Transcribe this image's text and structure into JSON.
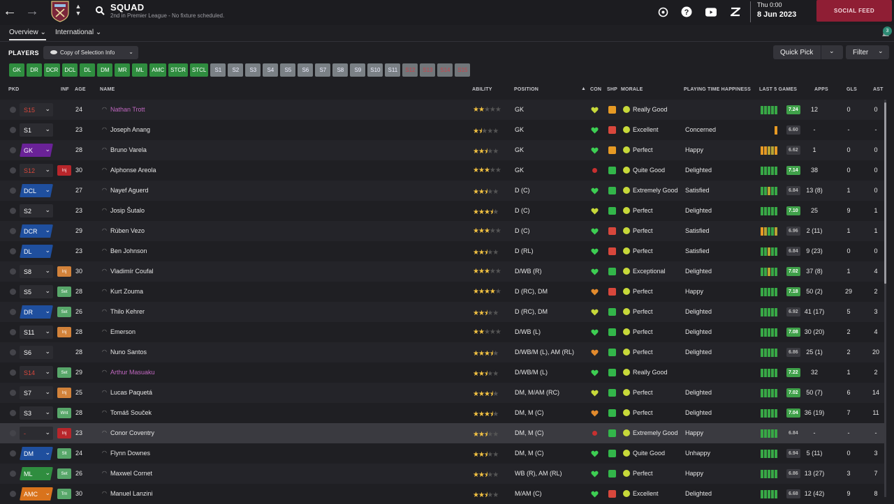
{
  "topbar": {
    "title": "SQUAD",
    "subtitle": "2nd in Premier League - No fixture scheduled.",
    "date_day": "Thu 0:00",
    "date_full": "8 Jun 2023",
    "social_feed": "SOCIAL FEED"
  },
  "tabs": [
    {
      "label": "Overview",
      "active": true
    },
    {
      "label": "International",
      "active": false
    }
  ],
  "notifications": {
    "count": "3"
  },
  "players_section": {
    "label": "PLAYERS",
    "copy_button": "Copy of Selection Info",
    "quick_pick": "Quick Pick",
    "filter": "Filter"
  },
  "chips": [
    {
      "label": "GK",
      "kind": "pos"
    },
    {
      "label": "DR",
      "kind": "pos"
    },
    {
      "label": "DCR",
      "kind": "pos"
    },
    {
      "label": "DCL",
      "kind": "pos"
    },
    {
      "label": "DL",
      "kind": "pos"
    },
    {
      "label": "DM",
      "kind": "pos"
    },
    {
      "label": "MR",
      "kind": "pos"
    },
    {
      "label": "ML",
      "kind": "pos"
    },
    {
      "label": "AMC",
      "kind": "pos"
    },
    {
      "label": "STCR",
      "kind": "pos"
    },
    {
      "label": "STCL",
      "kind": "pos"
    },
    {
      "label": "S1",
      "kind": "sel"
    },
    {
      "label": "S2",
      "kind": "sel"
    },
    {
      "label": "S3",
      "kind": "sel"
    },
    {
      "label": "S4",
      "kind": "sel"
    },
    {
      "label": "S5",
      "kind": "sel"
    },
    {
      "label": "S6",
      "kind": "sel"
    },
    {
      "label": "S7",
      "kind": "sel"
    },
    {
      "label": "S8",
      "kind": "sel"
    },
    {
      "label": "S9",
      "kind": "sel"
    },
    {
      "label": "S10",
      "kind": "sel"
    },
    {
      "label": "S11",
      "kind": "sel"
    },
    {
      "label": "S12",
      "kind": "empty"
    },
    {
      "label": "S13",
      "kind": "empty"
    },
    {
      "label": "S14",
      "kind": "empty"
    },
    {
      "label": "S15",
      "kind": "empty"
    }
  ],
  "columns": {
    "pkd": "PKD",
    "inf": "INF",
    "age": "AGE",
    "name": "NAME",
    "ability": "ABILITY",
    "position": "POSITION",
    "con": "CON",
    "shp": "SHP",
    "morale": "MORALE",
    "pth": "PLAYING TIME HAPPINESS",
    "last5": "LAST 5 GAMES",
    "apps": "APPS",
    "gls": "GLS",
    "ast": "AST"
  },
  "colors": {
    "pos_green": "#2f8d3f",
    "pos_blue": "#1f4f9e",
    "pos_purple": "#6a2298",
    "pos_orange": "#d9731c",
    "inj": "#b8262b",
    "set": "#58a76a",
    "wnt": "#55a86a",
    "loan_pink": "#c067c0"
  },
  "players": [
    {
      "pkd": "S15",
      "pkd_style": "red",
      "inf": "",
      "age": "24",
      "name": "Nathan Trott",
      "name_style": "pink",
      "stars": 2,
      "half": false,
      "position": "GK",
      "con": "yellow",
      "shp": "orange",
      "morale": "green",
      "morale_text": "Really Good",
      "pth": "",
      "form": [
        3,
        3,
        3,
        3,
        3
      ],
      "rating": "7.24",
      "rating_style": "green",
      "apps": "12",
      "gls": "0",
      "ast": "0"
    },
    {
      "pkd": "S1",
      "pkd_style": "plain",
      "inf": "",
      "age": "23",
      "name": "Joseph Anang",
      "stars": 1,
      "half": true,
      "position": "GK",
      "con": "green",
      "shp": "red",
      "morale": "green",
      "morale_text": "Excellent",
      "pth": "Concerned",
      "form": [
        0,
        0,
        0,
        0,
        1
      ],
      "rating": "6.60",
      "rating_style": "dark",
      "apps": "-",
      "gls": "-",
      "ast": "-"
    },
    {
      "pkd": "GK",
      "pkd_style": "purple",
      "inf": "",
      "age": "28",
      "name": "Bruno Varela",
      "stars": 2,
      "half": true,
      "position": "GK",
      "con": "green",
      "shp": "orangeup",
      "morale": "green",
      "morale_text": "Perfect",
      "pth": "Happy",
      "form": [
        1,
        1,
        2,
        2,
        1
      ],
      "rating": "6.62",
      "rating_style": "dark",
      "apps": "1",
      "gls": "0",
      "ast": "0"
    },
    {
      "pkd": "S12",
      "pkd_style": "red",
      "inf": "Inj",
      "inf_style": "inj",
      "age": "30",
      "name": "Alphonse Areola",
      "stars": 3,
      "half": false,
      "position": "GK",
      "con": "red",
      "shp": "green",
      "morale": "green",
      "morale_text": "Quite Good",
      "pth": "Delighted",
      "form": [
        3,
        3,
        3,
        3,
        3
      ],
      "rating": "7.14",
      "rating_style": "green",
      "apps": "38",
      "gls": "0",
      "ast": "0"
    },
    {
      "pkd": "DCL",
      "pkd_style": "blue",
      "inf": "",
      "age": "27",
      "name": "Nayef Aguerd",
      "stars": 2,
      "half": true,
      "position": "D (C)",
      "con": "green",
      "shp": "green",
      "morale": "green",
      "morale_text": "Extremely Good",
      "pth": "Satisfied",
      "form": [
        3,
        3,
        2,
        3,
        3
      ],
      "rating": "6.84",
      "rating_style": "dark",
      "apps": "13 (8)",
      "gls": "1",
      "ast": "0"
    },
    {
      "pkd": "S2",
      "pkd_style": "plain",
      "inf": "",
      "age": "23",
      "name": "Josip Šutalo",
      "stars": 3,
      "half": true,
      "position": "D (C)",
      "con": "yellow",
      "shp": "green",
      "morale": "green",
      "morale_text": "Perfect",
      "pth": "Delighted",
      "form": [
        3,
        3,
        3,
        3,
        3
      ],
      "rating": "7.10",
      "rating_style": "green",
      "apps": "25",
      "gls": "9",
      "ast": "1"
    },
    {
      "pkd": "DCR",
      "pkd_style": "blue",
      "inf": "",
      "age": "29",
      "name": "Rúben Vezo",
      "stars": 3,
      "half": false,
      "position": "D (C)",
      "con": "green",
      "shp": "red",
      "morale": "green",
      "morale_text": "Perfect",
      "pth": "Satisfied",
      "form": [
        1,
        2,
        3,
        3,
        2
      ],
      "rating": "6.96",
      "rating_style": "dark",
      "apps": "2 (11)",
      "gls": "1",
      "ast": "1"
    },
    {
      "pkd": "DL",
      "pkd_style": "blue",
      "inf": "",
      "age": "23",
      "name": "Ben Johnson",
      "stars": 2,
      "half": true,
      "position": "D (RL)",
      "con": "green",
      "shp": "red",
      "morale": "green",
      "morale_text": "Perfect",
      "pth": "Satisfied",
      "form": [
        3,
        3,
        2,
        3,
        3
      ],
      "rating": "6.84",
      "rating_style": "dark",
      "apps": "9 (23)",
      "gls": "0",
      "ast": "0"
    },
    {
      "pkd": "S8",
      "pkd_style": "plain",
      "inf": "Inj",
      "inf_style": "injo",
      "age": "30",
      "name": "Vladimír Coufal",
      "stars": 3,
      "half": false,
      "position": "D/WB (R)",
      "con": "green",
      "shp": "green",
      "morale": "green",
      "morale_text": "Exceptional",
      "pth": "Delighted",
      "form": [
        3,
        3,
        2,
        3,
        3
      ],
      "rating": "7.02",
      "rating_style": "green",
      "apps": "37 (8)",
      "gls": "1",
      "ast": "4"
    },
    {
      "pkd": "S5",
      "pkd_style": "plain",
      "inf": "Set",
      "inf_style": "set",
      "age": "28",
      "name": "Kurt Zouma",
      "stars": 4,
      "half": false,
      "position": "D (RC), DM",
      "con": "orange",
      "shp": "red",
      "morale": "green",
      "morale_text": "Perfect",
      "pth": "Happy",
      "form": [
        3,
        3,
        3,
        3,
        3
      ],
      "rating": "7.18",
      "rating_style": "green",
      "apps": "50 (2)",
      "gls": "29",
      "ast": "2"
    },
    {
      "pkd": "DR",
      "pkd_style": "blue",
      "inf": "Set",
      "inf_style": "set",
      "age": "26",
      "name": "Thilo Kehrer",
      "stars": 2,
      "half": true,
      "position": "D (RC), DM",
      "con": "yellow",
      "shp": "green",
      "morale": "green",
      "morale_text": "Perfect",
      "pth": "Delighted",
      "form": [
        3,
        3,
        3,
        3,
        3
      ],
      "rating": "6.92",
      "rating_style": "dark",
      "apps": "41 (17)",
      "gls": "5",
      "ast": "3"
    },
    {
      "pkd": "S11",
      "pkd_style": "plain",
      "inf": "Inj",
      "inf_style": "injo",
      "age": "28",
      "name": "Emerson",
      "stars": 2,
      "half": false,
      "position": "D/WB (L)",
      "con": "green",
      "shp": "green",
      "morale": "green",
      "morale_text": "Perfect",
      "pth": "Delighted",
      "form": [
        3,
        3,
        3,
        3,
        3
      ],
      "rating": "7.08",
      "rating_style": "green",
      "apps": "30 (20)",
      "gls": "2",
      "ast": "4"
    },
    {
      "pkd": "S6",
      "pkd_style": "plain",
      "inf": "",
      "age": "28",
      "name": "Nuno Santos",
      "stars": 3,
      "half": true,
      "position": "D/WB/M (L), AM (RL)",
      "con": "orange",
      "shp": "green",
      "morale": "green",
      "morale_text": "Perfect",
      "pth": "Delighted",
      "form": [
        3,
        3,
        3,
        3,
        3
      ],
      "rating": "6.86",
      "rating_style": "dark",
      "apps": "25 (1)",
      "gls": "2",
      "ast": "20"
    },
    {
      "pkd": "S14",
      "pkd_style": "red",
      "inf": "Set",
      "inf_style": "set",
      "age": "29",
      "name": "Arthur Masuaku",
      "name_style": "pink",
      "stars": 2,
      "half": true,
      "position": "D/WB/M (L)",
      "con": "green",
      "shp": "green",
      "morale": "green",
      "morale_text": "Really Good",
      "pth": "",
      "form": [
        3,
        3,
        3,
        3,
        3
      ],
      "rating": "7.22",
      "rating_style": "green",
      "apps": "32",
      "gls": "1",
      "ast": "2"
    },
    {
      "pkd": "S7",
      "pkd_style": "plain",
      "inf": "Inj",
      "inf_style": "injo",
      "age": "25",
      "name": "Lucas Paquetá",
      "stars": 3,
      "half": true,
      "position": "DM, M/AM (RC)",
      "con": "yellow",
      "shp": "green",
      "morale": "green",
      "morale_text": "Perfect",
      "pth": "Delighted",
      "form": [
        3,
        3,
        3,
        3,
        3
      ],
      "rating": "7.02",
      "rating_style": "green",
      "apps": "50 (7)",
      "gls": "6",
      "ast": "14"
    },
    {
      "pkd": "S3",
      "pkd_style": "plain",
      "inf": "Wnt",
      "inf_style": "set",
      "age": "28",
      "name": "Tomáš Souček",
      "stars": 3,
      "half": true,
      "position": "DM, M (C)",
      "con": "orange",
      "shp": "green",
      "morale": "green",
      "morale_text": "Perfect",
      "pth": "Delighted",
      "form": [
        3,
        3,
        3,
        3,
        3
      ],
      "rating": "7.04",
      "rating_style": "green",
      "apps": "36 (19)",
      "gls": "7",
      "ast": "11"
    },
    {
      "pkd": "-",
      "pkd_style": "red",
      "inf": "Inj",
      "inf_style": "inj",
      "age": "23",
      "name": "Conor Coventry",
      "stars": 2,
      "half": true,
      "position": "DM, M (C)",
      "con": "red",
      "shp": "green",
      "morale": "green",
      "morale_text": "Extremely Good",
      "pth": "Happy",
      "form": [
        3,
        3,
        3,
        3,
        3
      ],
      "rating": "6.84",
      "rating_style": "dark",
      "apps": "-",
      "gls": "-",
      "ast": "-",
      "highlight": true
    },
    {
      "pkd": "DM",
      "pkd_style": "blue",
      "inf": "Slt",
      "inf_style": "set",
      "age": "24",
      "name": "Flynn Downes",
      "stars": 2,
      "half": true,
      "position": "DM, M (C)",
      "con": "green",
      "shp": "green",
      "morale": "green",
      "morale_text": "Quite Good",
      "pth": "Unhappy",
      "form": [
        3,
        3,
        3,
        3,
        3
      ],
      "rating": "6.94",
      "rating_style": "dark",
      "apps": "5 (11)",
      "gls": "0",
      "ast": "3"
    },
    {
      "pkd": "ML",
      "pkd_style": "green",
      "inf": "Set",
      "inf_style": "set",
      "age": "26",
      "name": "Maxwel Cornet",
      "stars": 2,
      "half": true,
      "position": "WB (R), AM (RL)",
      "con": "green",
      "shp": "green",
      "morale": "green",
      "morale_text": "Perfect",
      "pth": "Happy",
      "form": [
        3,
        3,
        3,
        3,
        3
      ],
      "rating": "6.86",
      "rating_style": "dark",
      "apps": "13 (27)",
      "gls": "3",
      "ast": "7"
    },
    {
      "pkd": "AMC",
      "pkd_style": "orange",
      "inf": "Trn",
      "inf_style": "set",
      "age": "30",
      "name": "Manuel Lanzini",
      "stars": 2,
      "half": true,
      "position": "M/AM (C)",
      "con": "green",
      "shp": "red",
      "morale": "green",
      "morale_text": "Excellent",
      "pth": "Delighted",
      "form": [
        3,
        3,
        3,
        3,
        3
      ],
      "rating": "6.68",
      "rating_style": "dark",
      "apps": "12 (42)",
      "gls": "9",
      "ast": "8"
    }
  ]
}
